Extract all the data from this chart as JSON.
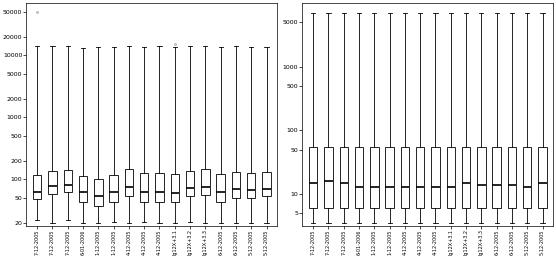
{
  "labels": [
    "7-12-2005",
    "7-12-2005",
    "7-12-2005",
    "6-01-2006",
    "1-12-2005",
    "1-12-2005",
    "4-12-2005",
    "4-12-2005",
    "4-12-2005",
    "lg12X+3.1",
    "lg12X+3.2",
    "lg12X+3.3",
    "6-12-2005",
    "6-12-2005",
    "5-12-2005",
    "5-12-2005"
  ],
  "left_boxes": [
    {
      "q1": 48,
      "median": 62,
      "q3": 120,
      "whislo": 22,
      "whishi": 14000,
      "fliers_high": [
        50000
      ],
      "fliers_low": []
    },
    {
      "q1": 58,
      "median": 78,
      "q3": 135,
      "whislo": 20,
      "whishi": 14000,
      "fliers_high": [],
      "fliers_low": []
    },
    {
      "q1": 62,
      "median": 82,
      "q3": 142,
      "whislo": 22,
      "whishi": 14000,
      "fliers_high": [],
      "fliers_low": []
    },
    {
      "q1": 44,
      "median": 62,
      "q3": 112,
      "whislo": 20,
      "whishi": 13000,
      "fliers_high": [],
      "fliers_low": []
    },
    {
      "q1": 38,
      "median": 55,
      "q3": 100,
      "whislo": 20,
      "whishi": 13500,
      "fliers_high": [],
      "fliers_low": []
    },
    {
      "q1": 44,
      "median": 62,
      "q3": 118,
      "whislo": 21,
      "whishi": 13500,
      "fliers_high": [],
      "fliers_low": []
    },
    {
      "q1": 55,
      "median": 75,
      "q3": 148,
      "whislo": 20,
      "whishi": 14000,
      "fliers_high": [],
      "fliers_low": []
    },
    {
      "q1": 44,
      "median": 64,
      "q3": 128,
      "whislo": 21,
      "whishi": 13500,
      "fliers_high": [],
      "fliers_low": []
    },
    {
      "q1": 44,
      "median": 62,
      "q3": 128,
      "whislo": 20,
      "whishi": 14000,
      "fliers_high": [],
      "fliers_low": []
    },
    {
      "q1": 44,
      "median": 60,
      "q3": 122,
      "whislo": 20,
      "whishi": 13500,
      "fliers_high": [
        15000
      ],
      "fliers_low": []
    },
    {
      "q1": 55,
      "median": 72,
      "q3": 138,
      "whislo": 21,
      "whishi": 14000,
      "fliers_high": [],
      "fliers_low": []
    },
    {
      "q1": 56,
      "median": 76,
      "q3": 145,
      "whislo": 20,
      "whishi": 14000,
      "fliers_high": [],
      "fliers_low": []
    },
    {
      "q1": 44,
      "median": 62,
      "q3": 122,
      "whislo": 20,
      "whishi": 13500,
      "fliers_high": [],
      "fliers_low": []
    },
    {
      "q1": 50,
      "median": 70,
      "q3": 132,
      "whislo": 20,
      "whishi": 14000,
      "fliers_high": [],
      "fliers_low": []
    },
    {
      "q1": 50,
      "median": 68,
      "q3": 128,
      "whislo": 20,
      "whishi": 13500,
      "fliers_high": [],
      "fliers_low": []
    },
    {
      "q1": 54,
      "median": 70,
      "q3": 133,
      "whislo": 20,
      "whishi": 13500,
      "fliers_high": [],
      "fliers_low": []
    }
  ],
  "right_boxes": [
    {
      "q1": 6,
      "median": 15,
      "q3": 55,
      "whislo": 3.5,
      "whishi": 7000,
      "fliers_high": [],
      "fliers_low": []
    },
    {
      "q1": 6,
      "median": 16,
      "q3": 55,
      "whislo": 3.5,
      "whishi": 7000,
      "fliers_high": [],
      "fliers_low": []
    },
    {
      "q1": 6,
      "median": 15,
      "q3": 55,
      "whislo": 3.5,
      "whishi": 7000,
      "fliers_high": [],
      "fliers_low": []
    },
    {
      "q1": 6,
      "median": 13,
      "q3": 55,
      "whislo": 3.5,
      "whishi": 7000,
      "fliers_high": [],
      "fliers_low": []
    },
    {
      "q1": 6,
      "median": 13,
      "q3": 55,
      "whislo": 3.5,
      "whishi": 7000,
      "fliers_high": [],
      "fliers_low": []
    },
    {
      "q1": 6,
      "median": 13,
      "q3": 55,
      "whislo": 3.5,
      "whishi": 7000,
      "fliers_high": [],
      "fliers_low": []
    },
    {
      "q1": 6,
      "median": 13,
      "q3": 55,
      "whislo": 3.5,
      "whishi": 7000,
      "fliers_high": [],
      "fliers_low": []
    },
    {
      "q1": 6,
      "median": 13,
      "q3": 55,
      "whislo": 3.5,
      "whishi": 7000,
      "fliers_high": [],
      "fliers_low": []
    },
    {
      "q1": 6,
      "median": 13,
      "q3": 55,
      "whislo": 3.5,
      "whishi": 7000,
      "fliers_high": [],
      "fliers_low": []
    },
    {
      "q1": 6,
      "median": 13,
      "q3": 55,
      "whislo": 3.5,
      "whishi": 7000,
      "fliers_high": [],
      "fliers_low": []
    },
    {
      "q1": 6,
      "median": 15,
      "q3": 55,
      "whislo": 3.5,
      "whishi": 7000,
      "fliers_high": [],
      "fliers_low": []
    },
    {
      "q1": 6,
      "median": 14,
      "q3": 55,
      "whislo": 3.5,
      "whishi": 7000,
      "fliers_high": [],
      "fliers_low": []
    },
    {
      "q1": 6,
      "median": 14,
      "q3": 55,
      "whislo": 3.5,
      "whishi": 7000,
      "fliers_high": [],
      "fliers_low": []
    },
    {
      "q1": 6,
      "median": 14,
      "q3": 55,
      "whislo": 3.5,
      "whishi": 7000,
      "fliers_high": [],
      "fliers_low": []
    },
    {
      "q1": 6,
      "median": 13,
      "q3": 55,
      "whislo": 3.5,
      "whishi": 7000,
      "fliers_high": [],
      "fliers_low": []
    },
    {
      "q1": 6,
      "median": 15,
      "q3": 55,
      "whislo": 3.5,
      "whishi": 7000,
      "fliers_high": [],
      "fliers_low": []
    }
  ],
  "left_yticks": [
    20,
    50,
    100,
    200,
    500,
    1000,
    2000,
    5000,
    10000,
    20000,
    50000
  ],
  "right_yticks": [
    5,
    10,
    50,
    100,
    500,
    1000,
    5000
  ],
  "left_ylim": [
    18,
    70000
  ],
  "right_ylim": [
    3.2,
    10000
  ],
  "background": "white"
}
